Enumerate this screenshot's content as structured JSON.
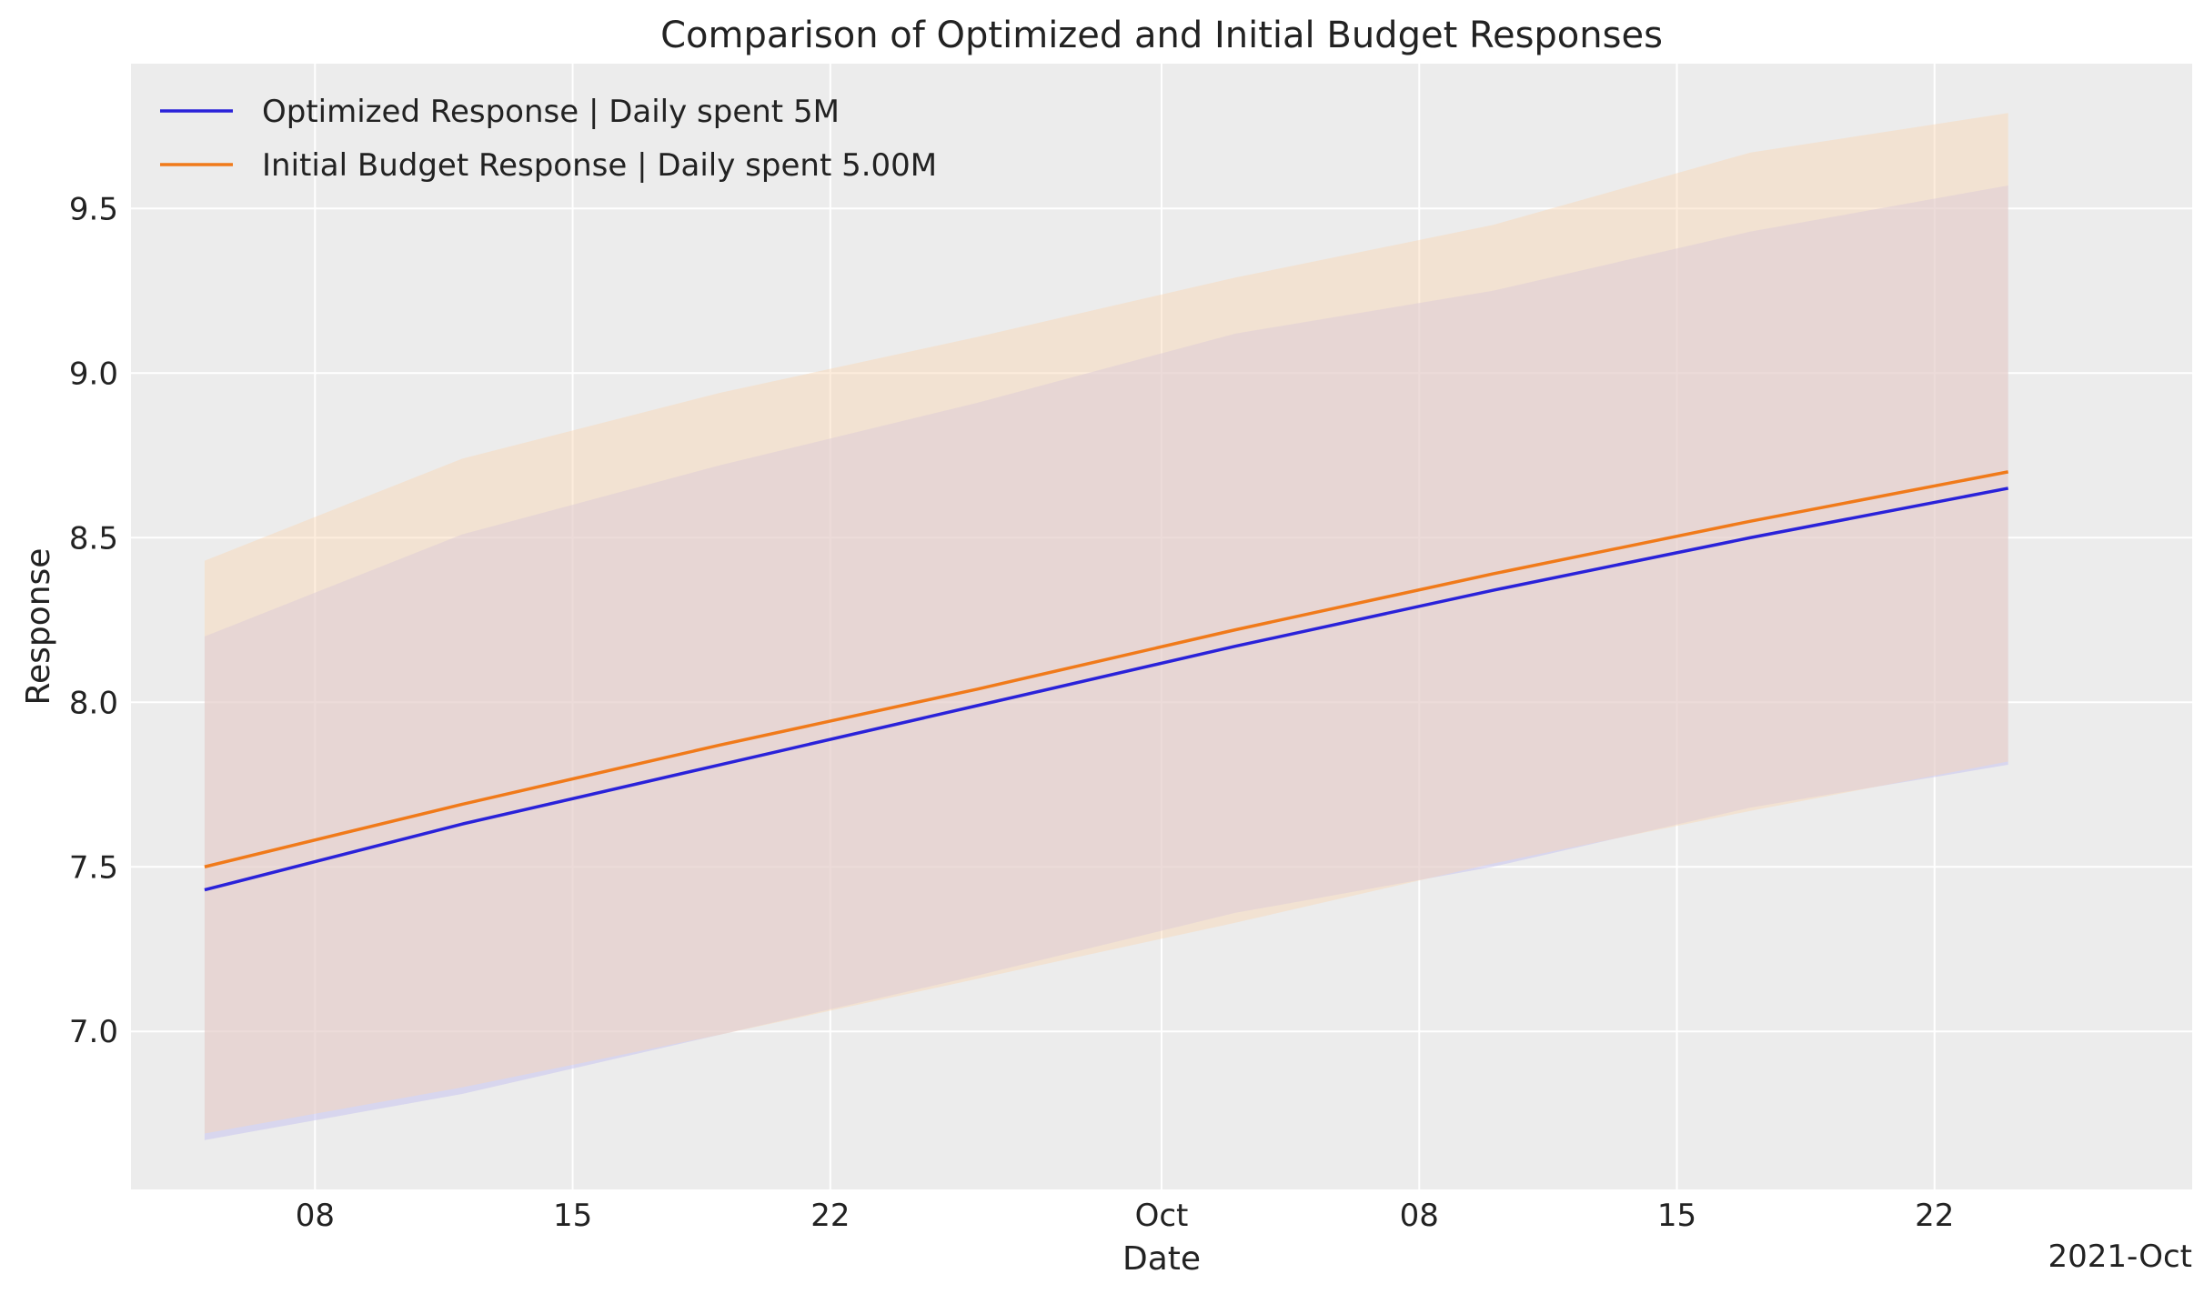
{
  "chart_data": {
    "type": "line",
    "title": "Comparison of Optimized and Initial Budget Responses",
    "xlabel": "Date",
    "ylabel": "Response",
    "x_offset_label": "2021-Oct",
    "x": [
      "2021-09-05",
      "2021-09-12",
      "2021-09-19",
      "2021-09-26",
      "2021-10-03",
      "2021-10-10",
      "2021-10-17",
      "2021-10-24"
    ],
    "xlim": [
      "2021-09-03",
      "2021-10-29"
    ],
    "xticks": [
      {
        "date": "2021-09-08",
        "label": "08"
      },
      {
        "date": "2021-09-15",
        "label": "15"
      },
      {
        "date": "2021-09-22",
        "label": "22"
      },
      {
        "date": "2021-10-01",
        "label": "Oct"
      },
      {
        "date": "2021-10-08",
        "label": "08"
      },
      {
        "date": "2021-10-15",
        "label": "15"
      },
      {
        "date": "2021-10-22",
        "label": "22"
      }
    ],
    "ylim": [
      6.52,
      9.94
    ],
    "yticks": [
      {
        "value": 7.0,
        "label": "7.0"
      },
      {
        "value": 7.5,
        "label": "7.5"
      },
      {
        "value": 8.0,
        "label": "8.0"
      },
      {
        "value": 8.5,
        "label": "8.5"
      },
      {
        "value": 9.0,
        "label": "9.0"
      },
      {
        "value": 9.5,
        "label": "9.5"
      }
    ],
    "grid": true,
    "legend_position": "top-left",
    "series": [
      {
        "name": "Optimized Response | Daily spent 5M",
        "color": "#2a22d9",
        "values": [
          7.43,
          7.63,
          7.81,
          7.99,
          8.17,
          8.34,
          8.5,
          8.65
        ],
        "band_lower": [
          6.67,
          6.81,
          6.99,
          7.17,
          7.36,
          7.5,
          7.68,
          7.81
        ],
        "band_upper": [
          8.2,
          8.51,
          8.72,
          8.91,
          9.12,
          9.25,
          9.43,
          9.57
        ],
        "band_color": "#c8c4f0"
      },
      {
        "name": "Initial Budget Response | Daily spent 5.00M",
        "color": "#f07a1a",
        "values": [
          7.5,
          7.69,
          7.87,
          8.04,
          8.22,
          8.39,
          8.55,
          8.7
        ],
        "band_lower": [
          6.69,
          6.83,
          6.99,
          7.16,
          7.33,
          7.51,
          7.67,
          7.82
        ],
        "band_upper": [
          8.43,
          8.74,
          8.94,
          9.11,
          9.29,
          9.45,
          9.67,
          9.79
        ],
        "band_color": "#fbd7b4"
      }
    ]
  }
}
